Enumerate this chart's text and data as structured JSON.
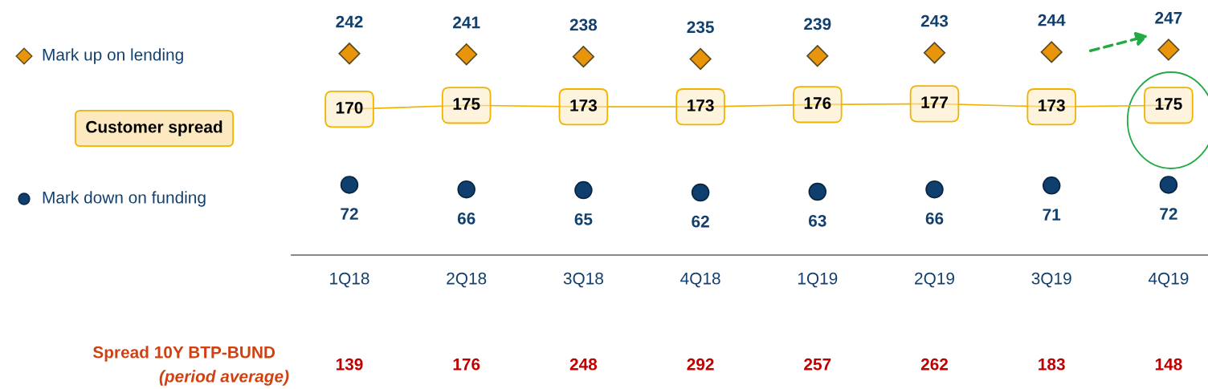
{
  "chart_data": {
    "type": "line",
    "categories": [
      "1Q18",
      "2Q18",
      "3Q18",
      "4Q18",
      "1Q19",
      "2Q19",
      "3Q19",
      "4Q19"
    ],
    "series": [
      {
        "name": "Mark up on lending",
        "type": "scatter",
        "marker": "diamond",
        "color": "#e8950c",
        "values": [
          242,
          241,
          238,
          235,
          239,
          243,
          244,
          247
        ]
      },
      {
        "name": "Customer spread",
        "color": "#f0b400",
        "values": [
          170,
          175,
          173,
          173,
          176,
          177,
          173,
          175
        ]
      },
      {
        "name": "Mark down on funding",
        "type": "scatter",
        "marker": "circle",
        "color": "#0f3f6e",
        "values": [
          72,
          66,
          65,
          62,
          63,
          66,
          71,
          72
        ]
      }
    ],
    "data_labels": true,
    "legend": "left",
    "annotations": [
      "Spread 10Y BTP-BUND",
      "(period average)",
      "139",
      "176",
      "248",
      "292",
      "257",
      "262",
      "183",
      "148"
    ]
  }
}
